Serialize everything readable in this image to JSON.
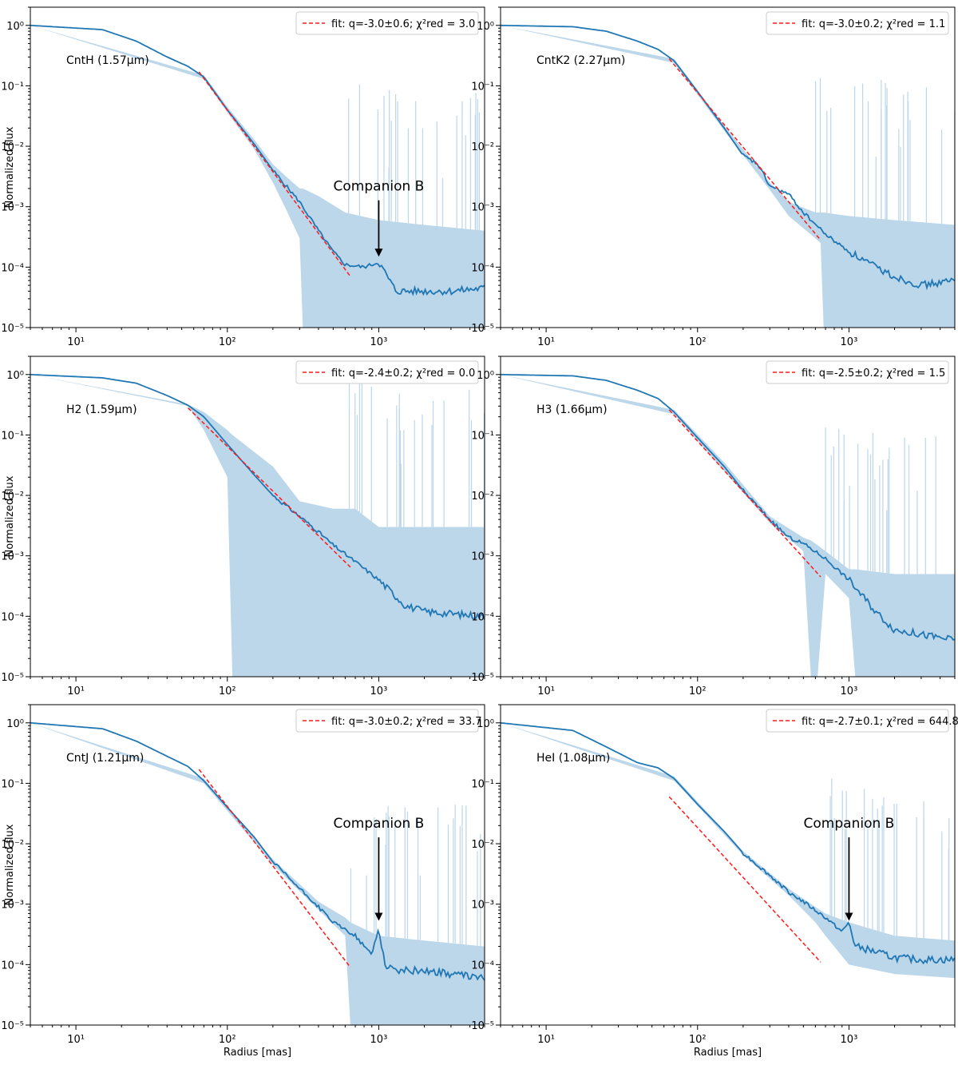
{
  "figure": {
    "xlabel": "Radius [mas]",
    "ylabel": "Normalized flux"
  },
  "chart_data": [
    {
      "type": "line",
      "panel": "top-left",
      "band": "CntH (1.57μm)",
      "legend": "fit: q=-3.0±0.6; χ²red = 3.0",
      "legend_loc": "top-right",
      "xscale": "log",
      "yscale": "log",
      "xlim": [
        5,
        5000
      ],
      "ylim": [
        1e-05,
        2
      ],
      "xticks": [
        "10¹",
        "10²",
        "10³"
      ],
      "yticks": [
        "10⁰",
        "10⁻¹",
        "10⁻²",
        "10⁻³",
        "10⁻⁴",
        "10⁻⁵"
      ],
      "series": [
        {
          "name": "profile",
          "x": [
            5,
            15,
            25,
            40,
            55,
            70,
            100,
            150,
            200,
            300,
            400,
            500,
            600,
            800,
            1000,
            1300,
            2000,
            3000,
            5000
          ],
          "y": [
            1.0,
            0.85,
            0.55,
            0.3,
            0.21,
            0.14,
            0.04,
            0.011,
            0.004,
            0.0012,
            0.0004,
            0.00018,
            0.00011,
            0.0001,
            0.00012,
            4e-05,
            4e-05,
            4e-05,
            4.5e-05
          ]
        },
        {
          "name": "uncertainty",
          "x": [
            5,
            70,
            100,
            150,
            200,
            250,
            300,
            315,
            400,
            600,
            1000,
            2000,
            5000
          ],
          "upper": [
            1.0,
            0.15,
            0.045,
            0.013,
            0.005,
            0.003,
            0.002,
            0.002,
            0.0015,
            0.0008,
            0.0006,
            0.0005,
            0.0004
          ],
          "lower": [
            1.0,
            0.13,
            0.036,
            0.009,
            0.0025,
            0.0008,
            0.0003,
            1e-05,
            1e-05,
            1e-05,
            1e-05,
            1e-05,
            1e-05
          ]
        },
        {
          "name": "fit",
          "q": -3.0,
          "x": [
            65,
            650
          ],
          "y": [
            0.17,
            7e-05
          ]
        }
      ],
      "annotation": {
        "label": "Companion B",
        "x": 1000,
        "y_text": 0.0012,
        "y_tip": 0.00014
      }
    },
    {
      "type": "line",
      "panel": "top-right",
      "band": "CntK2 (2.27μm)",
      "legend": "fit: q=-3.0±0.2; χ²red = 1.1",
      "legend_loc": "top-right",
      "xscale": "log",
      "yscale": "log",
      "xlim": [
        5,
        5000
      ],
      "ylim": [
        1e-05,
        2
      ],
      "xticks": [
        "10¹",
        "10²",
        "10³"
      ],
      "yticks": [
        "10⁰",
        "10⁻¹",
        "10⁻²",
        "10⁻³",
        "10⁻⁴",
        "10⁻⁵"
      ],
      "series": [
        {
          "name": "profile",
          "x": [
            5,
            15,
            25,
            40,
            55,
            70,
            100,
            150,
            200,
            250,
            300,
            400,
            500,
            700,
            1000,
            1500,
            2000,
            3000,
            5000
          ],
          "y": [
            1.0,
            0.95,
            0.8,
            0.55,
            0.4,
            0.26,
            0.08,
            0.02,
            0.007,
            0.005,
            0.0022,
            0.0016,
            0.0008,
            0.00035,
            0.00018,
            0.0001,
            7e-05,
            5e-05,
            6e-05
          ]
        },
        {
          "name": "uncertainty",
          "x": [
            5,
            70,
            150,
            300,
            400,
            600,
            650,
            680,
            1000,
            2000,
            5000
          ],
          "upper": [
            1.0,
            0.28,
            0.022,
            0.0025,
            0.0012,
            0.0008,
            0.0008,
            0.0008,
            0.0007,
            0.0006,
            0.0005
          ],
          "lower": [
            1.0,
            0.24,
            0.018,
            0.0019,
            0.0007,
            0.0003,
            0.00025,
            1e-05,
            1e-05,
            1e-05,
            1e-05
          ]
        },
        {
          "name": "fit",
          "q": -3.0,
          "x": [
            65,
            650
          ],
          "y": [
            0.28,
            0.00028
          ]
        }
      ]
    },
    {
      "type": "line",
      "panel": "middle-left",
      "band": "H2 (1.59μm)",
      "legend": "fit: q=-2.4±0.2; χ²red = 0.0",
      "legend_loc": "top-right",
      "xscale": "log",
      "yscale": "log",
      "xlim": [
        5,
        5000
      ],
      "ylim": [
        1e-05,
        2
      ],
      "xticks": [
        "10¹",
        "10²",
        "10³"
      ],
      "yticks": [
        "10⁰",
        "10⁻¹",
        "10⁻²",
        "10⁻³",
        "10⁻⁴",
        "10⁻⁵"
      ],
      "series": [
        {
          "name": "profile",
          "x": [
            5,
            15,
            25,
            40,
            55,
            70,
            100,
            150,
            200,
            300,
            400,
            500,
            700,
            1000,
            1500,
            2000,
            3000,
            5000
          ],
          "y": [
            1.0,
            0.88,
            0.72,
            0.45,
            0.31,
            0.2,
            0.07,
            0.022,
            0.01,
            0.0045,
            0.0025,
            0.0015,
            0.0008,
            0.0004,
            0.00015,
            0.00012,
            0.00011,
            0.0001
          ]
        },
        {
          "name": "uncertainty",
          "x": [
            5,
            55,
            70,
            100,
            108,
            200,
            300,
            500,
            700,
            1000,
            2000,
            5000
          ],
          "upper": [
            1.0,
            0.32,
            0.24,
            0.12,
            0.1,
            0.03,
            0.008,
            0.006,
            0.006,
            0.003,
            0.003,
            0.003
          ],
          "lower": [
            1.0,
            0.3,
            0.12,
            0.02,
            1e-05,
            1e-05,
            1e-05,
            1e-05,
            1e-05,
            1e-05,
            1e-05,
            1e-05
          ]
        },
        {
          "name": "fit",
          "q": -2.4,
          "x": [
            55,
            650
          ],
          "y": [
            0.28,
            0.00065
          ]
        }
      ]
    },
    {
      "type": "line",
      "panel": "middle-right",
      "band": "H3 (1.66μm)",
      "legend": "fit: q=-2.5±0.2; χ²red = 1.5",
      "legend_loc": "top-right",
      "xscale": "log",
      "yscale": "log",
      "xlim": [
        5,
        5000
      ],
      "ylim": [
        1e-05,
        2
      ],
      "xticks": [
        "10¹",
        "10²",
        "10³"
      ],
      "yticks": [
        "10⁰",
        "10⁻¹",
        "10⁻²",
        "10⁻³",
        "10⁻⁴",
        "10⁻⁵"
      ],
      "series": [
        {
          "name": "profile",
          "x": [
            5,
            15,
            25,
            40,
            55,
            70,
            100,
            150,
            200,
            300,
            400,
            500,
            700,
            1000,
            1500,
            2000,
            3000,
            5000
          ],
          "y": [
            1.0,
            0.95,
            0.8,
            0.55,
            0.4,
            0.24,
            0.09,
            0.03,
            0.012,
            0.004,
            0.002,
            0.0016,
            0.0009,
            0.0004,
            0.00012,
            6e-05,
            5e-05,
            4e-05
          ]
        },
        {
          "name": "uncertainty",
          "x": [
            5,
            70,
            150,
            300,
            500,
            560,
            620,
            700,
            1000,
            1100,
            2000,
            5000
          ],
          "upper": [
            1.0,
            0.26,
            0.035,
            0.0045,
            0.002,
            0.0018,
            0.0015,
            0.0012,
            0.0006,
            0.0006,
            0.0005,
            0.0005
          ],
          "lower": [
            1.0,
            0.22,
            0.025,
            0.0035,
            0.0012,
            1e-05,
            1e-05,
            0.0005,
            0.0002,
            1e-05,
            1e-05,
            1e-05
          ]
        },
        {
          "name": "fit",
          "q": -2.5,
          "x": [
            65,
            650
          ],
          "y": [
            0.26,
            0.00045
          ]
        }
      ]
    },
    {
      "type": "line",
      "panel": "bottom-left",
      "band": "CntJ (1.21μm)",
      "legend": "fit: q=-3.0±0.2; χ²red = 33.7",
      "legend_loc": "top-right",
      "xscale": "log",
      "yscale": "log",
      "xlim": [
        5,
        5000
      ],
      "ylim": [
        1e-05,
        2
      ],
      "xticks": [
        "10¹",
        "10²",
        "10³"
      ],
      "yticks": [
        "10⁰",
        "10⁻¹",
        "10⁻²",
        "10⁻³",
        "10⁻⁴",
        "10⁻⁵"
      ],
      "series": [
        {
          "name": "profile",
          "x": [
            5,
            15,
            25,
            40,
            55,
            70,
            100,
            150,
            200,
            300,
            400,
            500,
            700,
            800,
            900,
            1000,
            1100,
            1300,
            2000,
            3000,
            5000
          ],
          "y": [
            1.0,
            0.8,
            0.5,
            0.28,
            0.19,
            0.11,
            0.04,
            0.013,
            0.005,
            0.0018,
            0.0009,
            0.0005,
            0.0003,
            0.0002,
            0.00015,
            0.0004,
            0.0001,
            8e-05,
            8e-05,
            7e-05,
            6e-05
          ]
        },
        {
          "name": "uncertainty",
          "x": [
            5,
            70,
            200,
            400,
            600,
            650,
            1000,
            2000,
            5000
          ],
          "upper": [
            1.0,
            0.12,
            0.0055,
            0.0011,
            0.0006,
            0.0005,
            0.0003,
            0.00025,
            0.0002
          ],
          "lower": [
            1.0,
            0.1,
            0.0045,
            0.0008,
            0.0003,
            1e-05,
            1e-05,
            1e-05,
            1e-05
          ]
        },
        {
          "name": "fit",
          "q": -3.0,
          "x": [
            65,
            650
          ],
          "y": [
            0.17,
            9e-05
          ]
        }
      ],
      "annotation": {
        "label": "Companion B",
        "x": 1000,
        "y_text": 0.012,
        "y_tip": 0.0005
      }
    },
    {
      "type": "line",
      "panel": "bottom-right",
      "band": "HeI (1.08μm)",
      "legend": "fit: q=-2.7±0.1; χ²red = 644.8",
      "legend_loc": "top-right",
      "xscale": "log",
      "yscale": "log",
      "xlim": [
        5,
        5000
      ],
      "ylim": [
        1e-05,
        2
      ],
      "xticks": [
        "10¹",
        "10²",
        "10³"
      ],
      "yticks": [
        "10⁰",
        "10⁻¹",
        "10⁻²",
        "10⁻³",
        "10⁻⁴",
        "10⁻⁵"
      ],
      "series": [
        {
          "name": "profile",
          "x": [
            5,
            15,
            25,
            40,
            55,
            70,
            100,
            150,
            200,
            300,
            400,
            500,
            700,
            900,
            1000,
            1100,
            1300,
            2000,
            3000,
            5000
          ],
          "y": [
            1.0,
            0.75,
            0.4,
            0.22,
            0.18,
            0.12,
            0.045,
            0.016,
            0.007,
            0.003,
            0.0016,
            0.0011,
            0.0006,
            0.00035,
            0.0005,
            0.0002,
            0.00018,
            0.00013,
            0.00012,
            0.00012
          ]
        },
        {
          "name": "uncertainty",
          "x": [
            5,
            70,
            200,
            400,
            600,
            700,
            1000,
            2000,
            5000
          ],
          "upper": [
            1.0,
            0.13,
            0.0075,
            0.0018,
            0.0009,
            0.0007,
            0.0005,
            0.0003,
            0.00025
          ],
          "lower": [
            1.0,
            0.11,
            0.0065,
            0.0014,
            0.0005,
            0.0003,
            0.0001,
            7e-05,
            6e-05
          ]
        },
        {
          "name": "fit",
          "q": -2.7,
          "x": [
            65,
            650
          ],
          "y": [
            0.06,
            0.00011
          ]
        }
      ],
      "annotation": {
        "label": "Companion B",
        "x": 1000,
        "y_text": 0.012,
        "y_tip": 0.0005
      }
    }
  ]
}
